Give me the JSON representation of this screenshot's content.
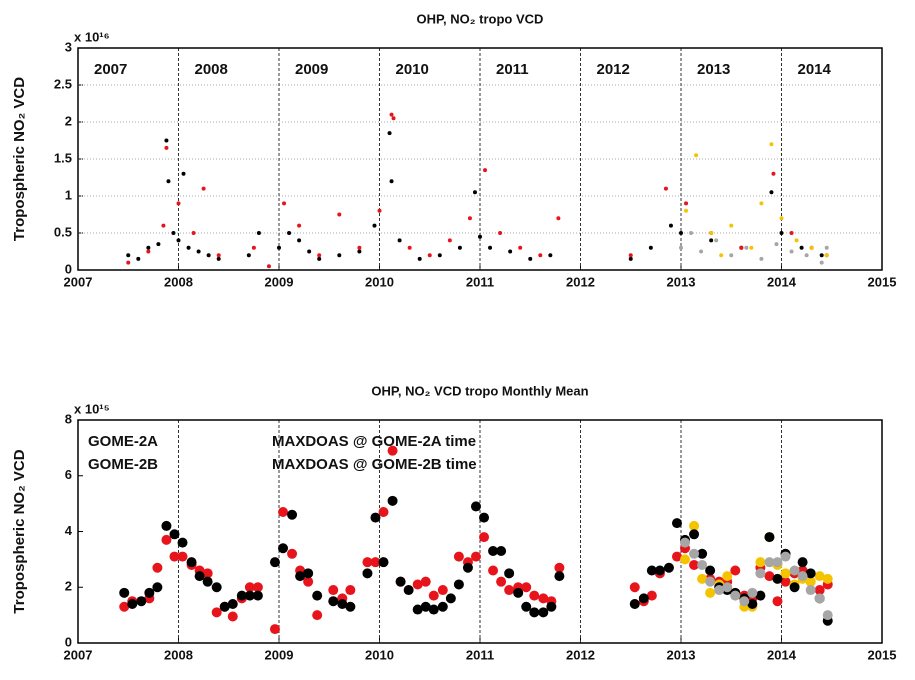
{
  "chart_data": [
    {
      "type": "scatter",
      "title": "OHP, NO₂ tropo VCD",
      "ylabel": "Tropospheric NO₂ VCD",
      "multiplier": "x 10¹⁶",
      "xlim": [
        2007,
        2015
      ],
      "xticks": [
        2007,
        2008,
        2009,
        2010,
        2011,
        2012,
        2013,
        2014,
        2015
      ],
      "ylim": [
        0,
        3
      ],
      "yticks": [
        0,
        0.5,
        1,
        1.5,
        2,
        2.5,
        3
      ],
      "grid": true,
      "vlines": [
        2008,
        2009,
        2010,
        2011,
        2012,
        2013,
        2014
      ],
      "year_labels": [
        "2007",
        "2008",
        "2009",
        "2010",
        "2011",
        "2012",
        "2013",
        "2014"
      ],
      "series": [
        {
          "color": "#000000",
          "x": [
            2007.5,
            2007.6,
            2007.7,
            2007.8,
            2007.88,
            2007.9,
            2007.95,
            2008.0,
            2008.05,
            2008.1,
            2008.2,
            2008.3,
            2008.4,
            2008.7,
            2008.8,
            2009.0,
            2009.1,
            2009.2,
            2009.3,
            2009.4,
            2009.6,
            2009.8,
            2009.95,
            2010.1,
            2010.12,
            2010.2,
            2010.4,
            2010.6,
            2010.8,
            2010.95,
            2011.0,
            2011.1,
            2011.3,
            2011.5,
            2011.7,
            2012.5,
            2012.7,
            2012.9,
            2013.0,
            2013.3,
            2013.6,
            2013.9,
            2014.0,
            2014.2,
            2014.4
          ],
          "values": [
            0.2,
            0.15,
            0.3,
            0.35,
            1.75,
            1.2,
            0.5,
            0.4,
            1.3,
            0.3,
            0.25,
            0.2,
            0.15,
            0.2,
            0.5,
            0.3,
            0.5,
            0.4,
            0.25,
            0.15,
            0.2,
            0.25,
            0.6,
            1.85,
            1.2,
            0.4,
            0.15,
            0.2,
            0.3,
            1.05,
            0.45,
            0.3,
            0.25,
            0.15,
            0.2,
            0.15,
            0.3,
            0.6,
            0.5,
            0.4,
            0.3,
            1.05,
            0.5,
            0.3,
            0.2
          ]
        },
        {
          "color": "#e8141c",
          "x": [
            2007.5,
            2007.7,
            2007.85,
            2007.88,
            2008.0,
            2008.15,
            2008.25,
            2008.4,
            2008.75,
            2008.9,
            2009.05,
            2009.2,
            2009.4,
            2009.6,
            2009.8,
            2010.0,
            2010.12,
            2010.14,
            2010.3,
            2010.5,
            2010.7,
            2010.9,
            2011.05,
            2011.2,
            2011.4,
            2011.6,
            2011.78,
            2012.5,
            2012.85,
            2013.05,
            2013.3,
            2013.6,
            2013.92,
            2014.1,
            2014.3,
            2014.45
          ],
          "values": [
            0.1,
            0.25,
            0.6,
            1.65,
            0.9,
            0.5,
            1.1,
            0.2,
            0.3,
            0.05,
            0.9,
            0.6,
            0.2,
            0.75,
            0.3,
            0.8,
            2.1,
            2.05,
            0.3,
            0.2,
            0.4,
            0.7,
            1.35,
            0.5,
            0.3,
            0.2,
            0.7,
            0.2,
            1.1,
            0.9,
            0.5,
            0.3,
            1.3,
            0.5,
            0.3,
            0.2
          ]
        },
        {
          "color": "#f5c400",
          "x": [
            2013.05,
            2013.15,
            2013.3,
            2013.4,
            2013.5,
            2013.7,
            2013.8,
            2013.9,
            2014.0,
            2014.15,
            2014.3,
            2014.45
          ],
          "values": [
            0.8,
            1.55,
            0.5,
            0.2,
            0.6,
            0.3,
            0.9,
            1.7,
            0.7,
            0.4,
            0.3,
            0.2
          ]
        },
        {
          "color": "#a6a6a6",
          "x": [
            2013.0,
            2013.1,
            2013.2,
            2013.35,
            2013.5,
            2013.65,
            2013.8,
            2013.95,
            2014.1,
            2014.25,
            2014.4,
            2014.45
          ],
          "values": [
            0.3,
            0.5,
            0.25,
            0.4,
            0.2,
            0.3,
            0.15,
            0.35,
            0.25,
            0.2,
            0.1,
            0.3
          ]
        }
      ]
    },
    {
      "type": "scatter",
      "title": "OHP, NO₂ VCD tropo Monthly Mean",
      "ylabel": "Tropospheric NO₂ VCD",
      "multiplier": "x 10¹⁵",
      "xlim": [
        2007,
        2015
      ],
      "xticks": [
        2007,
        2008,
        2009,
        2010,
        2011,
        2012,
        2013,
        2014,
        2015
      ],
      "ylim": [
        0,
        8
      ],
      "yticks": [
        0,
        2,
        4,
        6,
        8
      ],
      "grid": false,
      "vlines": [
        2008,
        2009,
        2010,
        2011,
        2012,
        2013,
        2014
      ],
      "series": [
        {
          "name": "GOME-2A",
          "color": "#e8141c",
          "x": [
            2007.46,
            2007.54,
            2007.71,
            2007.79,
            2007.88,
            2007.96,
            2008.04,
            2008.13,
            2008.21,
            2008.29,
            2008.38,
            2008.46,
            2008.54,
            2008.63,
            2008.71,
            2008.79,
            2008.96,
            2009.04,
            2009.13,
            2009.21,
            2009.29,
            2009.38,
            2009.54,
            2009.63,
            2009.71,
            2009.88,
            2009.96,
            2010.04,
            2010.13,
            2010.21,
            2010.38,
            2010.46,
            2010.54,
            2010.63,
            2010.79,
            2010.88,
            2010.96,
            2011.04,
            2011.13,
            2011.21,
            2011.29,
            2011.38,
            2011.46,
            2011.54,
            2011.63,
            2011.71,
            2011.79,
            2012.54,
            2012.63,
            2012.71,
            2012.79,
            2012.96,
            2013.04,
            2013.13,
            2013.29,
            2013.38,
            2013.46,
            2013.54,
            2013.63,
            2013.71,
            2013.79,
            2013.88,
            2013.96,
            2014.04,
            2014.13,
            2014.21,
            2014.29,
            2014.38,
            2014.46
          ],
          "values": [
            1.3,
            1.5,
            1.6,
            2.7,
            3.7,
            3.1,
            3.1,
            2.8,
            2.6,
            2.5,
            1.1,
            1.3,
            0.95,
            1.6,
            2.0,
            2.0,
            0.5,
            4.7,
            3.2,
            2.6,
            2.2,
            1.0,
            1.9,
            1.6,
            1.9,
            2.9,
            2.9,
            4.7,
            6.9,
            2.2,
            2.1,
            2.2,
            1.7,
            1.9,
            3.1,
            2.9,
            3.1,
            3.8,
            2.6,
            2.2,
            1.9,
            2.0,
            2.0,
            1.7,
            1.6,
            1.5,
            2.7,
            2.0,
            1.5,
            1.7,
            2.5,
            3.1,
            3.4,
            2.8,
            2.3,
            2.2,
            2.2,
            2.6,
            1.7,
            1.6,
            2.7,
            2.4,
            1.5,
            2.2,
            2.5,
            2.6,
            2.2,
            1.9,
            2.1
          ]
        },
        {
          "name": "GOME-2B",
          "color": "#f5c400",
          "x": [
            2013.04,
            2013.13,
            2013.21,
            2013.29,
            2013.38,
            2013.46,
            2013.54,
            2013.63,
            2013.71,
            2013.79,
            2013.88,
            2013.96,
            2014.04,
            2014.13,
            2014.21,
            2014.29,
            2014.38,
            2014.46
          ],
          "values": [
            3.0,
            4.2,
            2.3,
            1.8,
            2.1,
            2.4,
            1.7,
            1.3,
            1.3,
            2.9,
            3.8,
            2.8,
            2.5,
            2.1,
            2.3,
            2.2,
            2.4,
            2.3
          ]
        },
        {
          "name": "MAXDOAS @ GOME-2A time",
          "color": "#000000",
          "x": [
            2007.46,
            2007.54,
            2007.63,
            2007.71,
            2007.79,
            2007.88,
            2007.96,
            2008.04,
            2008.13,
            2008.21,
            2008.29,
            2008.38,
            2008.46,
            2008.54,
            2008.63,
            2008.71,
            2008.79,
            2008.96,
            2009.04,
            2009.13,
            2009.21,
            2009.29,
            2009.38,
            2009.54,
            2009.63,
            2009.71,
            2009.88,
            2009.96,
            2010.04,
            2010.13,
            2010.21,
            2010.29,
            2010.38,
            2010.46,
            2010.54,
            2010.63,
            2010.71,
            2010.79,
            2010.88,
            2010.96,
            2011.04,
            2011.13,
            2011.21,
            2011.29,
            2011.38,
            2011.46,
            2011.54,
            2011.63,
            2011.71,
            2011.79,
            2012.54,
            2012.63,
            2012.71,
            2012.79,
            2012.88,
            2012.96,
            2013.04,
            2013.13,
            2013.21,
            2013.29,
            2013.38,
            2013.46,
            2013.54,
            2013.63,
            2013.71,
            2013.79,
            2013.88,
            2013.96,
            2014.04,
            2014.13,
            2014.21,
            2014.29,
            2014.38,
            2014.46
          ],
          "values": [
            1.8,
            1.4,
            1.5,
            1.8,
            2.0,
            4.2,
            3.9,
            3.6,
            2.9,
            2.4,
            2.2,
            2.0,
            1.3,
            1.4,
            1.7,
            1.7,
            1.7,
            2.9,
            3.4,
            4.6,
            2.4,
            2.5,
            1.7,
            1.5,
            1.4,
            1.3,
            2.5,
            4.5,
            2.9,
            5.1,
            2.2,
            1.9,
            1.2,
            1.3,
            1.2,
            1.3,
            1.6,
            2.1,
            2.7,
            4.9,
            4.5,
            3.3,
            3.3,
            2.5,
            1.8,
            1.3,
            1.1,
            1.1,
            1.3,
            2.4,
            1.4,
            1.6,
            2.6,
            2.6,
            2.7,
            4.3,
            3.7,
            3.9,
            3.2,
            2.6,
            2.0,
            1.9,
            1.8,
            1.6,
            1.4,
            1.7,
            3.8,
            2.3,
            3.2,
            2.0,
            2.9,
            2.5,
            1.6,
            0.8
          ]
        },
        {
          "name": "MAXDOAS @ GOME-2B time",
          "color": "#a6a6a6",
          "x": [
            2013.04,
            2013.13,
            2013.21,
            2013.29,
            2013.38,
            2013.46,
            2013.54,
            2013.63,
            2013.71,
            2013.79,
            2013.88,
            2013.96,
            2014.04,
            2014.13,
            2014.21,
            2014.29,
            2014.38,
            2014.46
          ],
          "values": [
            3.6,
            3.2,
            2.8,
            2.2,
            1.9,
            2.0,
            1.7,
            1.5,
            1.8,
            2.5,
            2.9,
            2.9,
            3.1,
            2.6,
            2.4,
            1.9,
            1.6,
            1.0
          ]
        }
      ]
    }
  ]
}
